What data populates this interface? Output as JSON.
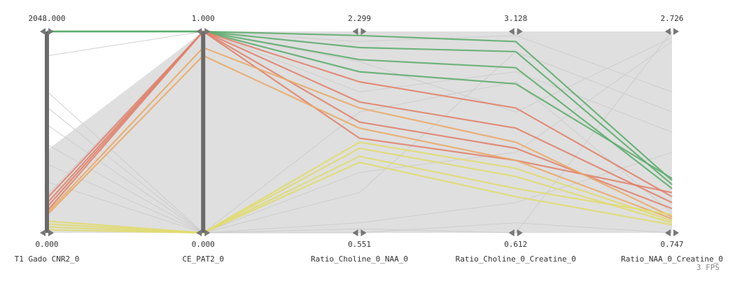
{
  "chart_data": {
    "type": "parallel_coordinates",
    "title": "",
    "axes": [
      {
        "name": "T1 Gado CNR2_0",
        "max": 2048.0,
        "min": 0.0,
        "max_label": "2048.000",
        "min_label": "0.000"
      },
      {
        "name": "CE_PAT2_0",
        "max": 1.0,
        "min": 0.0,
        "max_label": "1.000",
        "min_label": "0.000"
      },
      {
        "name": "Ratio_Choline_0_NAA_0",
        "max": 2.299,
        "min": 0.551,
        "max_label": "2.299",
        "min_label": "0.551"
      },
      {
        "name": "Ratio_Choline_0_Creatine_0",
        "max": 3.128,
        "min": 0.612,
        "max_label": "3.128",
        "min_label": "0.612"
      },
      {
        "name": "Ratio_NAA_0_Creatine_0",
        "max": 2.726,
        "min": 0.747,
        "max_label": "2.726",
        "min_label": "0.747"
      }
    ],
    "series": [
      {
        "group": "background",
        "color": "#cccccc",
        "lines": [
          [
            1440,
            0.0,
            0.6,
            0.75,
            0.1
          ],
          [
            1280,
            0.0,
            0.3,
            0.4,
            0.95
          ],
          [
            1100,
            0.0,
            0.2,
            0.9,
            0.6
          ],
          [
            900,
            0.0,
            0.05,
            0.15,
            0.4
          ],
          [
            700,
            0.0,
            0.02,
            0.0,
            1.0
          ],
          [
            520,
            0.0,
            0.0,
            0.05,
            0.0
          ],
          [
            380,
            1.0,
            0.95,
            0.98,
            0.7
          ],
          [
            260,
            1.0,
            0.85,
            0.6,
            0.97
          ],
          [
            1800,
            1.0,
            0.7,
            0.8,
            0.5
          ]
        ]
      },
      {
        "group": "highlight-green",
        "color": "#5aab6b",
        "lines": [
          [
            2048,
            1.0,
            0.98,
            0.95,
            0.26
          ],
          [
            2048,
            1.0,
            0.92,
            0.9,
            0.24
          ],
          [
            2048,
            1.0,
            0.86,
            0.82,
            0.22
          ],
          [
            2048,
            1.0,
            0.8,
            0.74,
            0.27
          ]
        ]
      },
      {
        "group": "highlight-salmon",
        "color": "#e0806a",
        "lines": [
          [
            350,
            1.0,
            0.75,
            0.62,
            0.18
          ],
          [
            300,
            1.0,
            0.65,
            0.52,
            0.15
          ],
          [
            260,
            1.0,
            0.55,
            0.42,
            0.12
          ],
          [
            220,
            1.0,
            0.47,
            0.36,
            0.2
          ]
        ]
      },
      {
        "group": "highlight-orange",
        "color": "#eaa866",
        "lines": [
          [
            200,
            0.92,
            0.62,
            0.45,
            0.08
          ],
          [
            180,
            0.88,
            0.52,
            0.36,
            0.07
          ]
        ]
      },
      {
        "group": "highlight-yellow",
        "color": "#e1dc6c",
        "lines": [
          [
            120,
            0.0,
            0.45,
            0.32,
            0.06
          ],
          [
            90,
            0.0,
            0.42,
            0.28,
            0.05
          ],
          [
            60,
            0.0,
            0.38,
            0.22,
            0.09
          ],
          [
            30,
            0.0,
            0.35,
            0.18,
            0.04
          ]
        ]
      }
    ],
    "grid": false,
    "legend": "none"
  },
  "status": {
    "fps_label": "3 FPS"
  }
}
